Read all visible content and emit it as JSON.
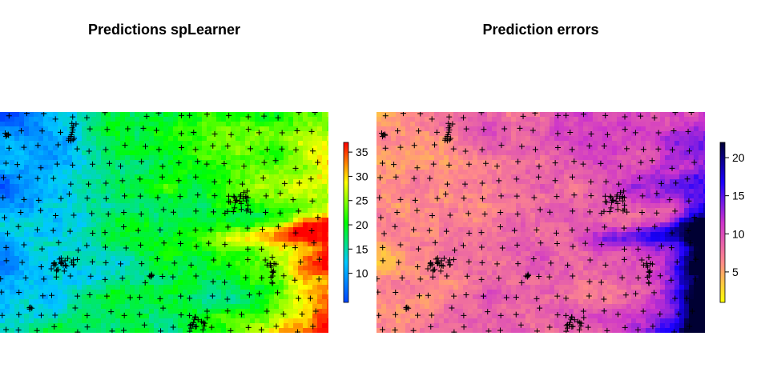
{
  "chart_data": [
    {
      "type": "heatmap",
      "title": "Predictions spLearner",
      "palette": "rainbow",
      "colors": [
        "#0044ff",
        "#00c8ff",
        "#00ff00",
        "#ffff00",
        "#ff0000"
      ],
      "colorbar": {
        "range": [
          4,
          37
        ],
        "ticks": [
          10,
          15,
          20,
          25,
          30,
          35
        ]
      },
      "overlay": "sample locations (+)"
    },
    {
      "type": "heatmap",
      "title": "Prediction errors",
      "palette": "plasma",
      "colors": [
        "#ffff00",
        "#ff8a8a",
        "#cc33cc",
        "#1a00ff",
        "#000033"
      ],
      "colorbar": {
        "range": [
          1,
          22
        ],
        "ticks": [
          5,
          10,
          15,
          20
        ]
      },
      "overlay": "sample locations (+)"
    }
  ]
}
